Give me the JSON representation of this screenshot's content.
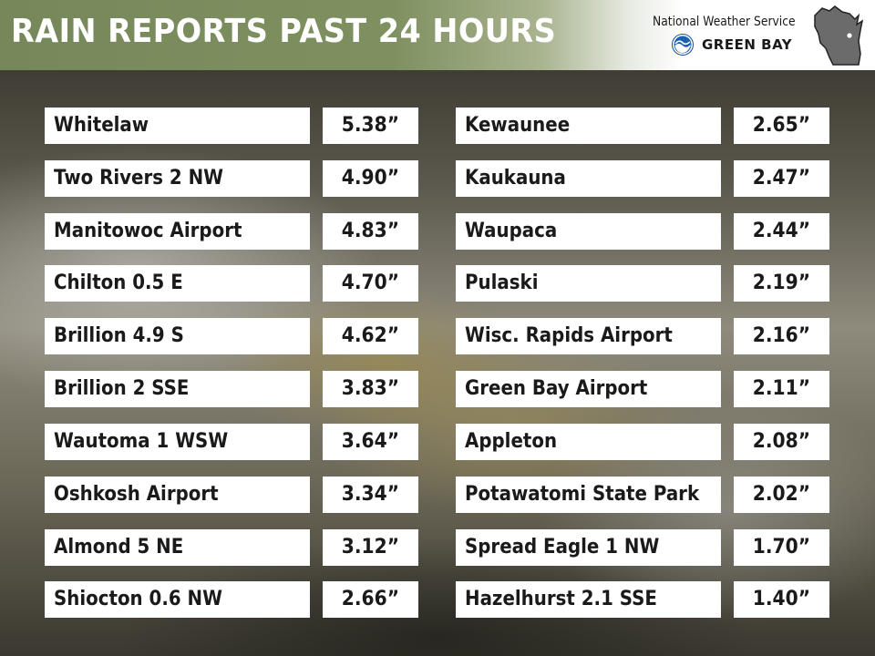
{
  "header": {
    "title": "RAIN REPORTS PAST 24 HOURS",
    "agency": "National Weather Service",
    "office": "GREEN BAY"
  },
  "colors": {
    "header_green": "#7f9060",
    "cell_background": "#ffffff",
    "text": "#1a1a1a"
  },
  "icons": [
    "noaa-logo-icon",
    "wisconsin-map-icon"
  ],
  "reports": [
    {
      "name": "Whitelaw",
      "value": "5.38”"
    },
    {
      "name": "Two Rivers 2 NW",
      "value": "4.90”"
    },
    {
      "name": "Manitowoc Airport",
      "value": "4.83”"
    },
    {
      "name": "Chilton 0.5 E",
      "value": "4.70”"
    },
    {
      "name": "Brillion 4.9 S",
      "value": "4.62”"
    },
    {
      "name": "Brillion 2 SSE",
      "value": "3.83”"
    },
    {
      "name": "Wautoma 1 WSW",
      "value": "3.64”"
    },
    {
      "name": "Oshkosh Airport",
      "value": "3.34”"
    },
    {
      "name": "Almond 5 NE",
      "value": "3.12”"
    },
    {
      "name": "Shiocton 0.6 NW",
      "value": "2.66”"
    },
    {
      "name": "Kewaunee",
      "value": "2.65”"
    },
    {
      "name": "Kaukauna",
      "value": "2.47”"
    },
    {
      "name": "Waupaca",
      "value": "2.44”"
    },
    {
      "name": "Pulaski",
      "value": "2.19”"
    },
    {
      "name": "Wisc. Rapids Airport",
      "value": "2.16”"
    },
    {
      "name": "Green Bay Airport",
      "value": "2.11”"
    },
    {
      "name": "Appleton",
      "value": "2.08”"
    },
    {
      "name": "Potawatomi State Park",
      "value": "2.02”"
    },
    {
      "name": "Spread Eagle 1 NW",
      "value": "1.70”"
    },
    {
      "name": "Hazelhurst 2.1 SSE",
      "value": "1.40”"
    }
  ]
}
